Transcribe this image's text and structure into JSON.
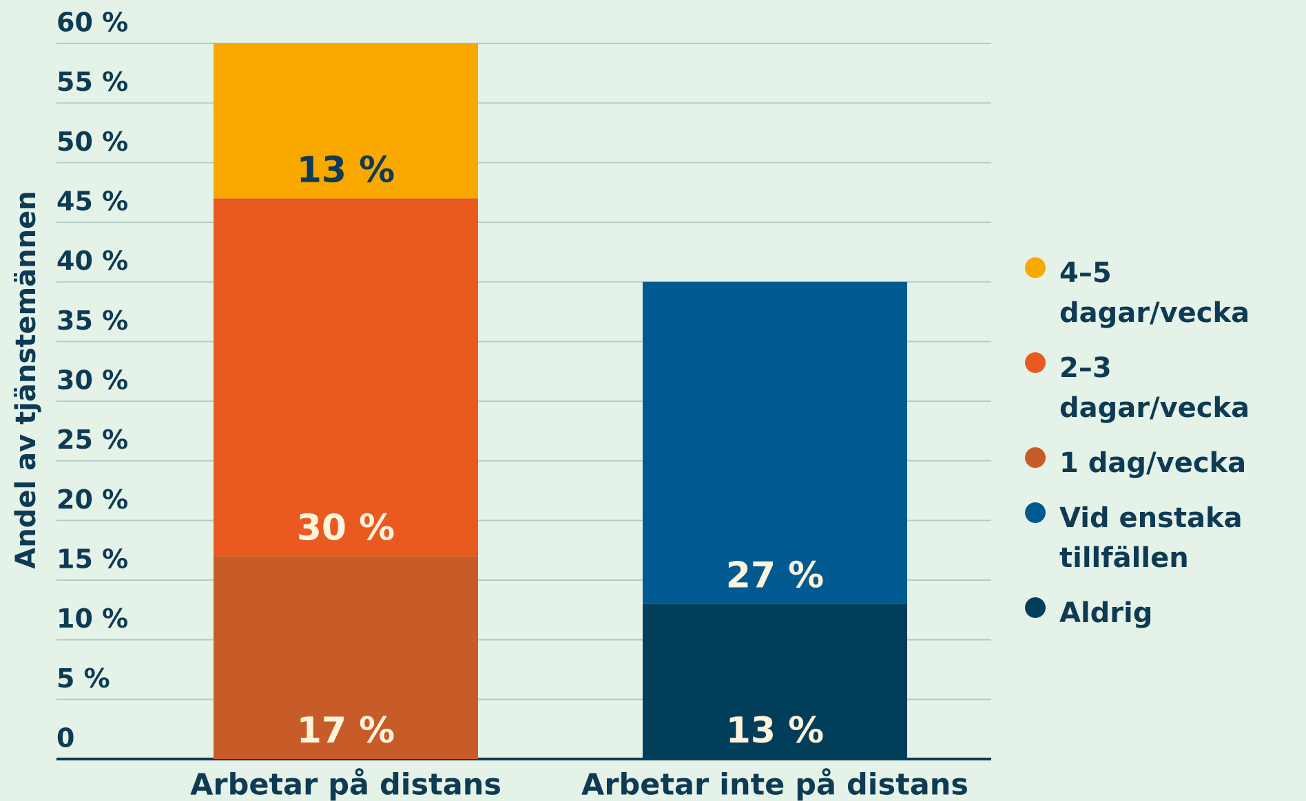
{
  "chart_data": {
    "type": "stacked-bar",
    "y_label": "Andel av tjänstemännen",
    "categories": [
      "Arbetar på distans",
      "Arbetar inte på distans"
    ],
    "series": [
      {
        "name": "4–5 dagar/vecka",
        "color": "#f9a800",
        "values": [
          13,
          null
        ],
        "value_labels": [
          "13 %",
          null
        ]
      },
      {
        "name": "2–3 dagar/vecka",
        "color": "#e85a20",
        "values": [
          30,
          null
        ],
        "value_labels": [
          "30 %",
          null
        ]
      },
      {
        "name": "1 dag/vecka",
        "color": "#c85c28",
        "values": [
          17,
          null
        ],
        "value_labels": [
          "17 %",
          null
        ]
      },
      {
        "name": "Vid enstaka tillfällen",
        "color": "#005a92",
        "values": [
          null,
          27
        ],
        "value_labels": [
          null,
          "27 %"
        ]
      },
      {
        "name": "Aldrig",
        "color": "#003e5a",
        "values": [
          null,
          13
        ],
        "value_labels": [
          null,
          "13 %"
        ]
      }
    ],
    "ylim": [
      0,
      60
    ],
    "yticks": [
      0,
      {
        "value": 5,
        "label": "5 %"
      },
      {
        "value": 10,
        "label": "10 %"
      },
      {
        "value": 15,
        "label": "15 %"
      },
      {
        "value": 20,
        "label": "20 %"
      },
      {
        "value": 25,
        "label": "25 %"
      },
      {
        "value": 30,
        "label": "30 %"
      },
      {
        "value": 35,
        "label": "35 %"
      },
      {
        "value": 40,
        "label": "40 %"
      },
      {
        "value": 45,
        "label": "45 %"
      },
      {
        "value": 50,
        "label": "50 %"
      },
      {
        "value": 55,
        "label": "55 %"
      },
      {
        "value": 60,
        "label": "60 %"
      }
    ],
    "grid": true,
    "legend": "right"
  }
}
